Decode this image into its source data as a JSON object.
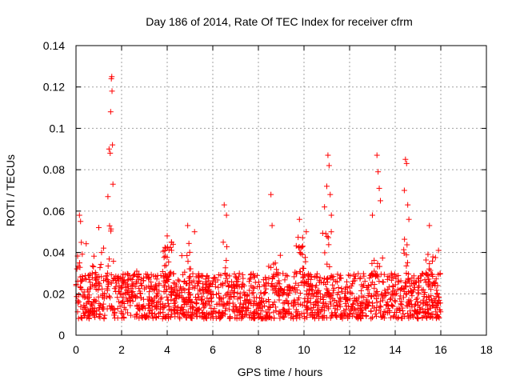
{
  "chart_data": {
    "type": "scatter",
    "title": "Day 186 of 2014, Rate Of TEC Index for receiver cfrm",
    "xlabel": "GPS time / hours",
    "ylabel": "ROTI / TECUs",
    "xlim": [
      0,
      18
    ],
    "ylim": [
      0,
      0.14
    ],
    "xticks": [
      0,
      2,
      4,
      6,
      8,
      10,
      12,
      14,
      16,
      18
    ],
    "yticks": [
      0,
      0.02,
      0.04,
      0.06,
      0.08,
      0.1,
      0.12,
      0.14
    ],
    "xtick_labels": [
      "0",
      "2",
      "4",
      "6",
      "8",
      "10",
      "12",
      "14",
      "16",
      "18"
    ],
    "ytick_labels": [
      "0",
      "0.02",
      "0.04",
      "0.06",
      "0.08",
      "0.1",
      "0.12",
      "0.14"
    ],
    "grid": true,
    "marker": "+",
    "color": "#ff0000",
    "series": [
      {
        "name": "ROTI",
        "x_range": [
          0,
          16
        ],
        "baseline_band": [
          0.008,
          0.03
        ],
        "notable_points": [
          {
            "x": 0.15,
            "y": 0.058
          },
          {
            "x": 0.2,
            "y": 0.055
          },
          {
            "x": 1.0,
            "y": 0.052
          },
          {
            "x": 1.4,
            "y": 0.067
          },
          {
            "x": 1.45,
            "y": 0.09
          },
          {
            "x": 1.5,
            "y": 0.088
          },
          {
            "x": 1.52,
            "y": 0.108
          },
          {
            "x": 1.55,
            "y": 0.124
          },
          {
            "x": 1.57,
            "y": 0.125
          },
          {
            "x": 1.6,
            "y": 0.092
          },
          {
            "x": 1.58,
            "y": 0.118
          },
          {
            "x": 1.62,
            "y": 0.073
          },
          {
            "x": 4.0,
            "y": 0.048
          },
          {
            "x": 4.9,
            "y": 0.053
          },
          {
            "x": 5.2,
            "y": 0.05
          },
          {
            "x": 6.5,
            "y": 0.063
          },
          {
            "x": 6.6,
            "y": 0.058
          },
          {
            "x": 8.55,
            "y": 0.068
          },
          {
            "x": 8.6,
            "y": 0.053
          },
          {
            "x": 9.8,
            "y": 0.056
          },
          {
            "x": 10.1,
            "y": 0.05
          },
          {
            "x": 10.9,
            "y": 0.062
          },
          {
            "x": 11.0,
            "y": 0.072
          },
          {
            "x": 11.05,
            "y": 0.087
          },
          {
            "x": 11.1,
            "y": 0.082
          },
          {
            "x": 11.15,
            "y": 0.068
          },
          {
            "x": 11.2,
            "y": 0.058
          },
          {
            "x": 13.0,
            "y": 0.058
          },
          {
            "x": 13.2,
            "y": 0.087
          },
          {
            "x": 13.25,
            "y": 0.079
          },
          {
            "x": 13.3,
            "y": 0.071
          },
          {
            "x": 13.35,
            "y": 0.065
          },
          {
            "x": 14.4,
            "y": 0.07
          },
          {
            "x": 14.45,
            "y": 0.085
          },
          {
            "x": 14.5,
            "y": 0.083
          },
          {
            "x": 14.55,
            "y": 0.063
          },
          {
            "x": 14.6,
            "y": 0.056
          },
          {
            "x": 15.5,
            "y": 0.053
          },
          {
            "x": 15.9,
            "y": 0.041
          }
        ],
        "burst_regions": [
          {
            "x": 0.15,
            "peak": 0.05
          },
          {
            "x": 1.0,
            "peak": 0.045
          },
          {
            "x": 1.5,
            "peak": 0.06
          },
          {
            "x": 2.5,
            "peak": 0.035
          },
          {
            "x": 4.0,
            "peak": 0.045
          },
          {
            "x": 4.9,
            "peak": 0.045
          },
          {
            "x": 6.5,
            "peak": 0.045
          },
          {
            "x": 8.7,
            "peak": 0.04
          },
          {
            "x": 9.9,
            "peak": 0.05
          },
          {
            "x": 11.05,
            "peak": 0.05
          },
          {
            "x": 13.2,
            "peak": 0.05
          },
          {
            "x": 14.5,
            "peak": 0.05
          },
          {
            "x": 15.6,
            "peak": 0.04
          }
        ]
      }
    ]
  }
}
